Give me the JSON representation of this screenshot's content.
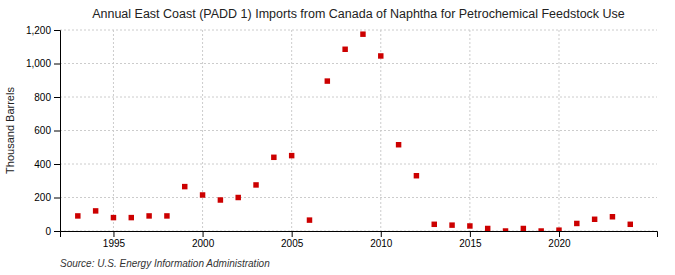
{
  "chart_data": {
    "type": "scatter",
    "title": "Annual East Coast (PADD 1) Imports from Canada of Naphtha for Petrochemical Feedstock Use",
    "ylabel": "Thousand Barrels",
    "source": "Source: U.S. Energy Information Administration",
    "x": [
      1993,
      1994,
      1995,
      1996,
      1997,
      1998,
      1999,
      2000,
      2001,
      2002,
      2003,
      2004,
      2005,
      2006,
      2007,
      2008,
      2009,
      2010,
      2011,
      2012,
      2013,
      2014,
      2015,
      2016,
      2017,
      2018,
      2019,
      2020,
      2021,
      2022,
      2023,
      2024
    ],
    "values": [
      90,
      120,
      80,
      80,
      90,
      90,
      265,
      215,
      185,
      200,
      275,
      440,
      450,
      65,
      895,
      1085,
      1175,
      1045,
      515,
      330,
      40,
      35,
      30,
      15,
      0,
      15,
      0,
      5,
      45,
      70,
      85,
      40
    ],
    "color": "#cc0000",
    "marker": "square",
    "xlim": [
      1992.0,
      2025.5
    ],
    "xticks": [
      1995,
      2000,
      2005,
      2010,
      2015,
      2020
    ],
    "ylim": [
      0,
      1200
    ],
    "yticks": [
      0,
      200,
      400,
      600,
      800,
      {
        "value": 1000,
        "label": "1,000"
      },
      {
        "value": 1200,
        "label": "1,200"
      }
    ],
    "grid": true
  }
}
